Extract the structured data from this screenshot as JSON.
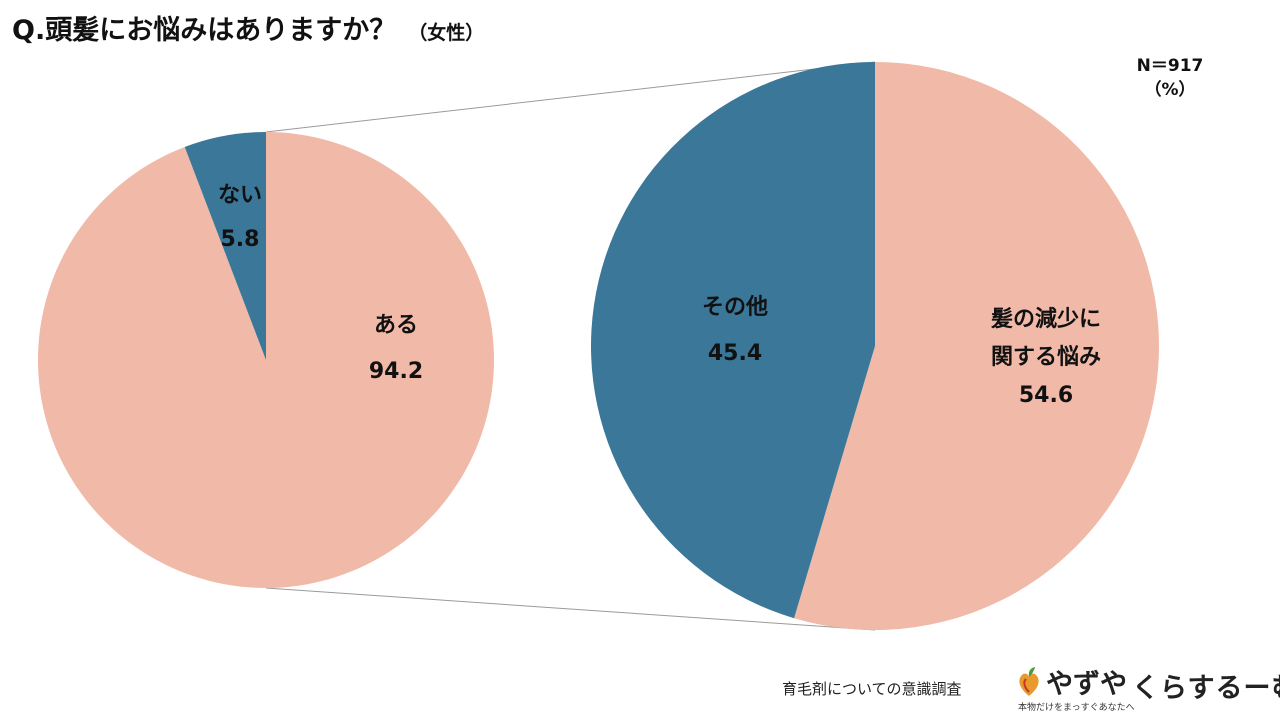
{
  "header": {
    "title": "Q.頭髪にお悩みはありますか？",
    "subtitle": "（女性）",
    "sample_size": "N＝917",
    "unit": "（%）"
  },
  "chart_data": [
    {
      "type": "pie",
      "categories": [
        "ある",
        "ない"
      ],
      "values": [
        94.2,
        5.8
      ],
      "colors": [
        "#F0B9A8",
        "#3A7799"
      ],
      "label_values": [
        "94.2",
        "5.8"
      ]
    },
    {
      "type": "pie",
      "categories": [
        "髪の減少に関する悩み",
        "その他"
      ],
      "label_lines": [
        [
          "髪の減少に",
          "関する悩み"
        ],
        [
          "その他"
        ]
      ],
      "values": [
        54.6,
        45.4
      ],
      "colors": [
        "#F0B9A8",
        "#3A7799"
      ],
      "label_values": [
        "54.6",
        "45.4"
      ]
    }
  ],
  "footer": {
    "survey_name": "育毛剤についての意識調査",
    "brand1": "やずや",
    "brand1_tagline": "本物だけをまっすぐあなたへ",
    "brand2": "くらするーむ"
  }
}
